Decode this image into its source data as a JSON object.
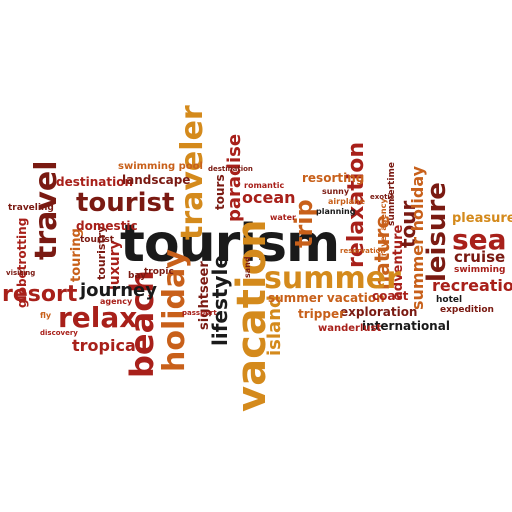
{
  "colors": {
    "black": "#1a1a1a",
    "dark_red": "#7a1a12",
    "red": "#a8201a",
    "orange": "#c8601a",
    "amber": "#d48a1c",
    "gold": "#c89a2a",
    "brown": "#6b2a1a"
  },
  "words": {
    "tourism": "tourism",
    "summer": "summer",
    "vacation": "vacation",
    "holiday": "holiday",
    "beach": "beach",
    "traveler": "traveler",
    "tourist": "tourist",
    "travel": "travel",
    "relax": "relax",
    "resort": "resort",
    "journey": "journey",
    "sea": "sea",
    "leisure": "leisure",
    "trip": "trip",
    "relaxation": "relaxation",
    "recreation": "recreation",
    "cruise": "cruise",
    "pleasure": "pleasure",
    "tropical": "tropical",
    "paradise": "paradise",
    "ocean": "ocean",
    "lifestyle": "lifestyle",
    "island": "island",
    "nature": "nature",
    "tour": "tour",
    "adventure": "adventure",
    "summer_holiday": "summer holiday",
    "summer_vacation": "summer vacation",
    "coast": "coast",
    "exploration": "exploration",
    "international": "international",
    "tripper": "tripper",
    "wanderlust": "wanderlust",
    "expedition": "expedition",
    "hotel": "hotel",
    "swimming": "swimming",
    "sightseer": "sightseer",
    "destination": "destination",
    "landscape": "landscape",
    "swimming_pool": "swimming pool",
    "domestic": "domestic",
    "tourist_2": "tourist",
    "touring": "touring",
    "touristry": "touristry",
    "luxury": "luxury",
    "globetrotting": "globetrotting",
    "traveling": "traveling",
    "resorting": "resorting",
    "romantic": "romantic",
    "sunny": "sunny",
    "airplane": "airplane",
    "planning": "planning",
    "tours": "tours",
    "tropic": "tropic",
    "bay": "bay",
    "agency": "agency",
    "sand": "sand",
    "water": "water",
    "travel_agency": "travel agency",
    "summertime": "summertime",
    "exotic": "exotic",
    "fly": "fly",
    "visiting": "visiting",
    "passport": "passport",
    "destination_2": "destination",
    "reservation": "reservation",
    "discovery": "discovery"
  }
}
